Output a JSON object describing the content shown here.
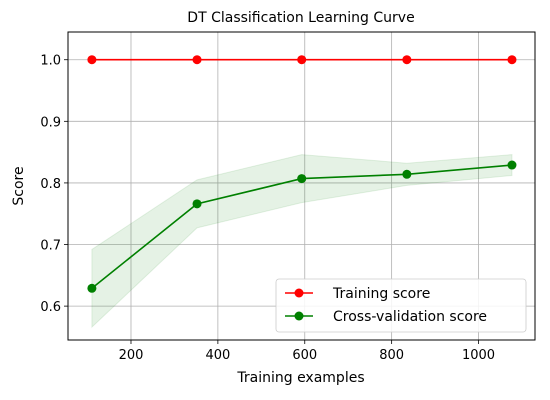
{
  "chart_data": {
    "type": "line",
    "title": "DT Classification Learning Curve",
    "xlabel": "Training examples",
    "ylabel": "Score",
    "xlim": [
      55,
      1130
    ],
    "ylim": [
      0.545,
      1.045
    ],
    "xticks": [
      200,
      400,
      600,
      800,
      1000
    ],
    "yticks": [
      0.6,
      0.7,
      0.8,
      0.9,
      1.0
    ],
    "ytick_labels": [
      "0.6",
      "0.7",
      "0.8",
      "0.9",
      "1.0"
    ],
    "grid": true,
    "legend_position": "lower-right",
    "x": [
      110,
      352,
      593,
      835,
      1077
    ],
    "series": [
      {
        "name": "Training score",
        "color": "#ff0000",
        "marker": "circle",
        "values": [
          1.0,
          1.0,
          1.0,
          1.0,
          1.0
        ],
        "band_lower": [
          1.0,
          1.0,
          1.0,
          1.0,
          1.0
        ],
        "band_upper": [
          1.0,
          1.0,
          1.0,
          1.0,
          1.0
        ]
      },
      {
        "name": "Cross-validation score",
        "color": "#008000",
        "marker": "circle",
        "values": [
          0.629,
          0.766,
          0.807,
          0.814,
          0.829
        ],
        "band_lower": [
          0.566,
          0.727,
          0.768,
          0.796,
          0.812
        ],
        "band_upper": [
          0.692,
          0.805,
          0.846,
          0.832,
          0.846
        ]
      }
    ]
  }
}
